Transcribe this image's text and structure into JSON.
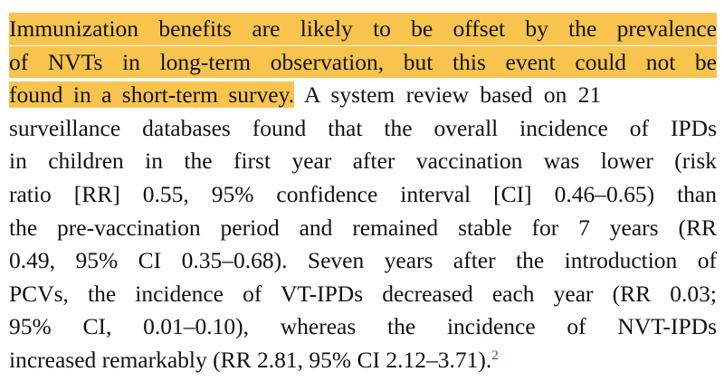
{
  "paragraph": {
    "highlighted_lines": [
      "Immunization benefits are likely to be offset by the prevalence",
      "of NVTs in long-term observation, but this event could not be"
    ],
    "line3_highlighted": "found in a short-term survey.",
    "line3_rest": " A system review based on 21",
    "lines": [
      "surveillance databases found that the overall incidence of IPDs",
      "in children in the first year after vaccination was lower (risk",
      "ratio [RR] 0.55, 95% confidence interval [CI] 0.46–0.65) than",
      "the pre-vaccination period and remained stable for 7 years (RR",
      "0.49, 95% CI 0.35–0.68). Seven years after the introduction of",
      "PCVs, the incidence of VT-IPDs decreased each year (RR 0.03;",
      "95% CI, 0.01–0.10), whereas the incidence of NVT-IPDs"
    ],
    "last_line": "increased remarkably (RR 2.81, 95% CI 2.12–3.71).",
    "citation": "2"
  },
  "colors": {
    "highlight": "#f8c44e",
    "citation_link": "#2b4fb3"
  }
}
